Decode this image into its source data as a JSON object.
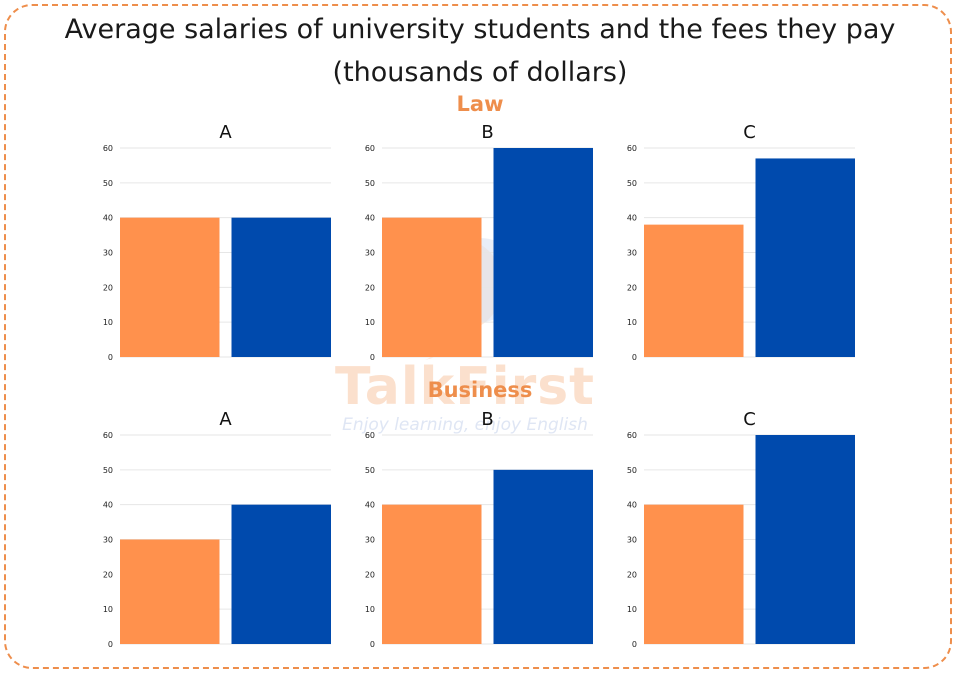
{
  "title_line1": "Average salaries of university students and the fees they pay",
  "title_line2": "(thousands of dollars)",
  "sections": [
    "Law",
    "Business"
  ],
  "watermark": {
    "brand": "TalkFirst",
    "tagline": "Enjoy learning, enjoy English"
  },
  "colors": {
    "orange": "#ff914d",
    "blue": "#004aad",
    "accent": "#ee8e4c"
  },
  "chart_data": [
    {
      "type": "bar",
      "section": "Law",
      "title": "A",
      "ylim": [
        0,
        60
      ],
      "yticks": [
        0,
        10,
        20,
        30,
        40,
        50,
        60
      ],
      "grid": true,
      "values": [
        40,
        40
      ],
      "colors": [
        "#ff914d",
        "#004aad"
      ]
    },
    {
      "type": "bar",
      "section": "Law",
      "title": "B",
      "ylim": [
        0,
        60
      ],
      "yticks": [
        0,
        10,
        20,
        30,
        40,
        50,
        60
      ],
      "grid": true,
      "values": [
        40,
        60
      ],
      "colors": [
        "#ff914d",
        "#004aad"
      ]
    },
    {
      "type": "bar",
      "section": "Law",
      "title": "C",
      "ylim": [
        0,
        60
      ],
      "yticks": [
        0,
        10,
        20,
        30,
        40,
        50,
        60
      ],
      "grid": true,
      "values": [
        38,
        57
      ],
      "colors": [
        "#ff914d",
        "#004aad"
      ]
    },
    {
      "type": "bar",
      "section": "Business",
      "title": "A",
      "ylim": [
        0,
        60
      ],
      "yticks": [
        0,
        10,
        20,
        30,
        40,
        50,
        60
      ],
      "grid": true,
      "values": [
        30,
        40
      ],
      "colors": [
        "#ff914d",
        "#004aad"
      ]
    },
    {
      "type": "bar",
      "section": "Business",
      "title": "B",
      "ylim": [
        0,
        60
      ],
      "yticks": [
        0,
        10,
        20,
        30,
        40,
        50,
        60
      ],
      "grid": true,
      "values": [
        40,
        50
      ],
      "colors": [
        "#ff914d",
        "#004aad"
      ]
    },
    {
      "type": "bar",
      "section": "Business",
      "title": "C",
      "ylim": [
        0,
        60
      ],
      "yticks": [
        0,
        10,
        20,
        30,
        40,
        50,
        60
      ],
      "grid": true,
      "values": [
        40,
        60
      ],
      "colors": [
        "#ff914d",
        "#004aad"
      ]
    }
  ]
}
